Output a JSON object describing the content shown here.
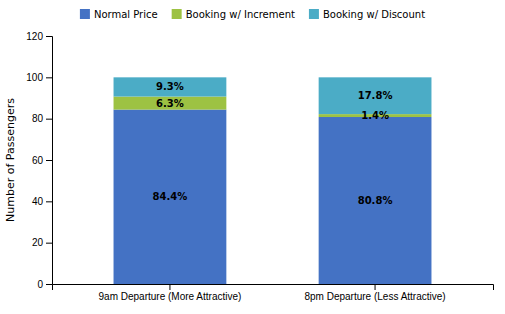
{
  "chart_data": {
    "type": "bar",
    "stacked": true,
    "categories": [
      "9am Departure (More Attractive)",
      "8pm Departure (Less Attractive)"
    ],
    "ylabel": "Number of Passengers",
    "ylim": [
      0,
      120
    ],
    "yticks": [
      0,
      20,
      40,
      60,
      80,
      100,
      120
    ],
    "grid": false,
    "data_labels": true,
    "legend": "top",
    "series": [
      {
        "name": "Normal Price",
        "color": "#4472C4",
        "values": [
          84.4,
          80.8
        ],
        "value_labels": [
          "84.4%",
          "80.8%"
        ]
      },
      {
        "name": "Booking w/ Increment",
        "color": "#9DC243",
        "values": [
          6.3,
          1.4
        ],
        "value_labels": [
          "6.3%",
          "1.4%"
        ]
      },
      {
        "name": "Booking w/ Discount",
        "color": "#4BACC6",
        "values": [
          9.3,
          17.8
        ],
        "value_labels": [
          "9.3%",
          "17.8%"
        ]
      }
    ]
  }
}
